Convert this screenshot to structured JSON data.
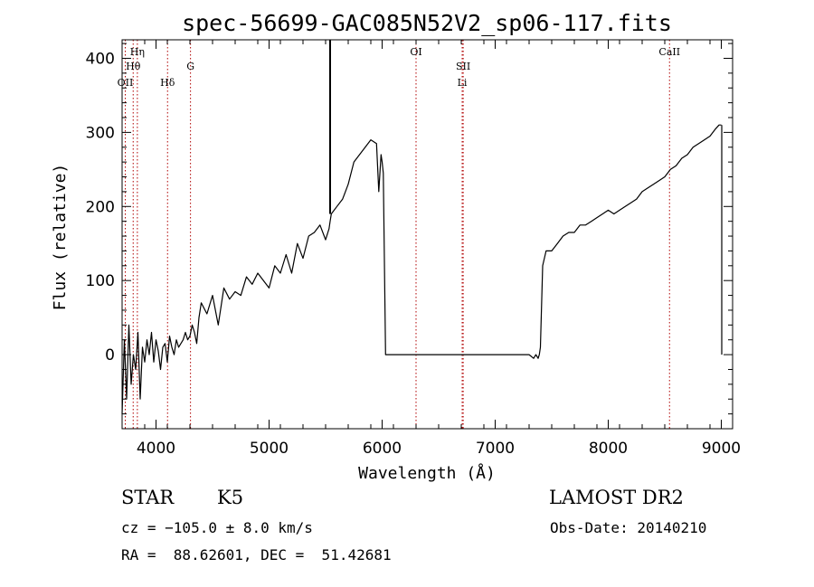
{
  "chart_data": {
    "type": "line",
    "title": "spec-56699-GAC085N52V2_sp06-117.fits",
    "xlabel": "Wavelength (Å)",
    "ylabel": "Flux (relative)",
    "xlim": [
      3700,
      9100
    ],
    "ylim": [
      -100,
      425
    ],
    "xticks": [
      4000,
      5000,
      6000,
      7000,
      8000,
      9000
    ],
    "yticks": [
      0,
      100,
      200,
      300,
      400
    ],
    "line_color": "#000000",
    "marker_color": "#b00000",
    "spectral_lines": [
      {
        "label": "OII",
        "x": 3728
      },
      {
        "label": "Hη",
        "x": 3835
      },
      {
        "label": "Hθ",
        "x": 3798
      },
      {
        "label": "Hδ",
        "x": 4102
      },
      {
        "label": "G",
        "x": 4305
      },
      {
        "label": "OI",
        "x": 6300
      },
      {
        "label": "SII",
        "x": 6717
      },
      {
        "label": "Li",
        "x": 6708
      },
      {
        "label": "CaII",
        "x": 8542
      }
    ],
    "series": [
      {
        "x": [
          3700,
          3720,
          3740,
          3760,
          3780,
          3800,
          3820,
          3840,
          3860,
          3880,
          3900,
          3920,
          3940,
          3960,
          3980,
          4000,
          4020,
          4040,
          4060,
          4080,
          4100,
          4120,
          4140,
          4160,
          4180,
          4200,
          4220,
          4240,
          4260,
          4280,
          4300,
          4320,
          4340,
          4360,
          4380,
          4400,
          4450,
          4500,
          4550,
          4600,
          4650,
          4700,
          4750,
          4800,
          4850,
          4900,
          4950,
          5000,
          5050,
          5100,
          5150,
          5200,
          5250,
          5300,
          5350,
          5400,
          5450,
          5500,
          5530,
          5540,
          5550,
          5600,
          5650,
          5700,
          5750,
          5800,
          5850,
          5900,
          5950,
          5970,
          5990,
          6000,
          6010,
          6030,
          6050,
          6200,
          6400,
          6600,
          6800,
          7000,
          7100,
          7200,
          7250,
          7300,
          7340,
          7360,
          7380,
          7390,
          7400,
          7420,
          7450,
          7500,
          7550,
          7600,
          7650,
          7700,
          7750,
          7800,
          7850,
          7900,
          7950,
          8000,
          8050,
          8100,
          8150,
          8200,
          8250,
          8300,
          8350,
          8400,
          8450,
          8500,
          8550,
          8600,
          8650,
          8700,
          8750,
          8800,
          8850,
          8900,
          8950,
          8980,
          9000
        ],
        "y": [
          -80,
          20,
          -60,
          40,
          -40,
          0,
          -20,
          30,
          -60,
          10,
          -10,
          20,
          0,
          30,
          -10,
          20,
          5,
          -20,
          10,
          15,
          -10,
          25,
          10,
          0,
          20,
          10,
          15,
          20,
          30,
          20,
          25,
          40,
          30,
          15,
          50,
          70,
          55,
          80,
          40,
          90,
          75,
          85,
          80,
          105,
          95,
          110,
          100,
          90,
          120,
          110,
          135,
          110,
          150,
          130,
          160,
          165,
          175,
          155,
          170,
          180,
          190,
          200,
          210,
          230,
          260,
          270,
          280,
          290,
          285,
          220,
          270,
          260,
          245,
          0,
          0,
          0,
          0,
          0,
          0,
          0,
          0,
          0,
          0,
          0,
          -5,
          0,
          -5,
          0,
          10,
          120,
          140,
          140,
          150,
          160,
          165,
          165,
          175,
          175,
          180,
          185,
          190,
          195,
          190,
          195,
          200,
          205,
          210,
          220,
          225,
          230,
          235,
          240,
          250,
          255,
          265,
          270,
          280,
          285,
          290,
          295,
          305,
          310,
          310
        ]
      }
    ]
  },
  "info": {
    "object_type": "STAR",
    "subclass": "K5",
    "survey": "LAMOST DR2",
    "cz": "cz = −105.0 ± 8.0 km/s",
    "obs_date": "Obs-Date: 20140210",
    "coords": "RA =  88.62601, DEC =  51.42681"
  }
}
